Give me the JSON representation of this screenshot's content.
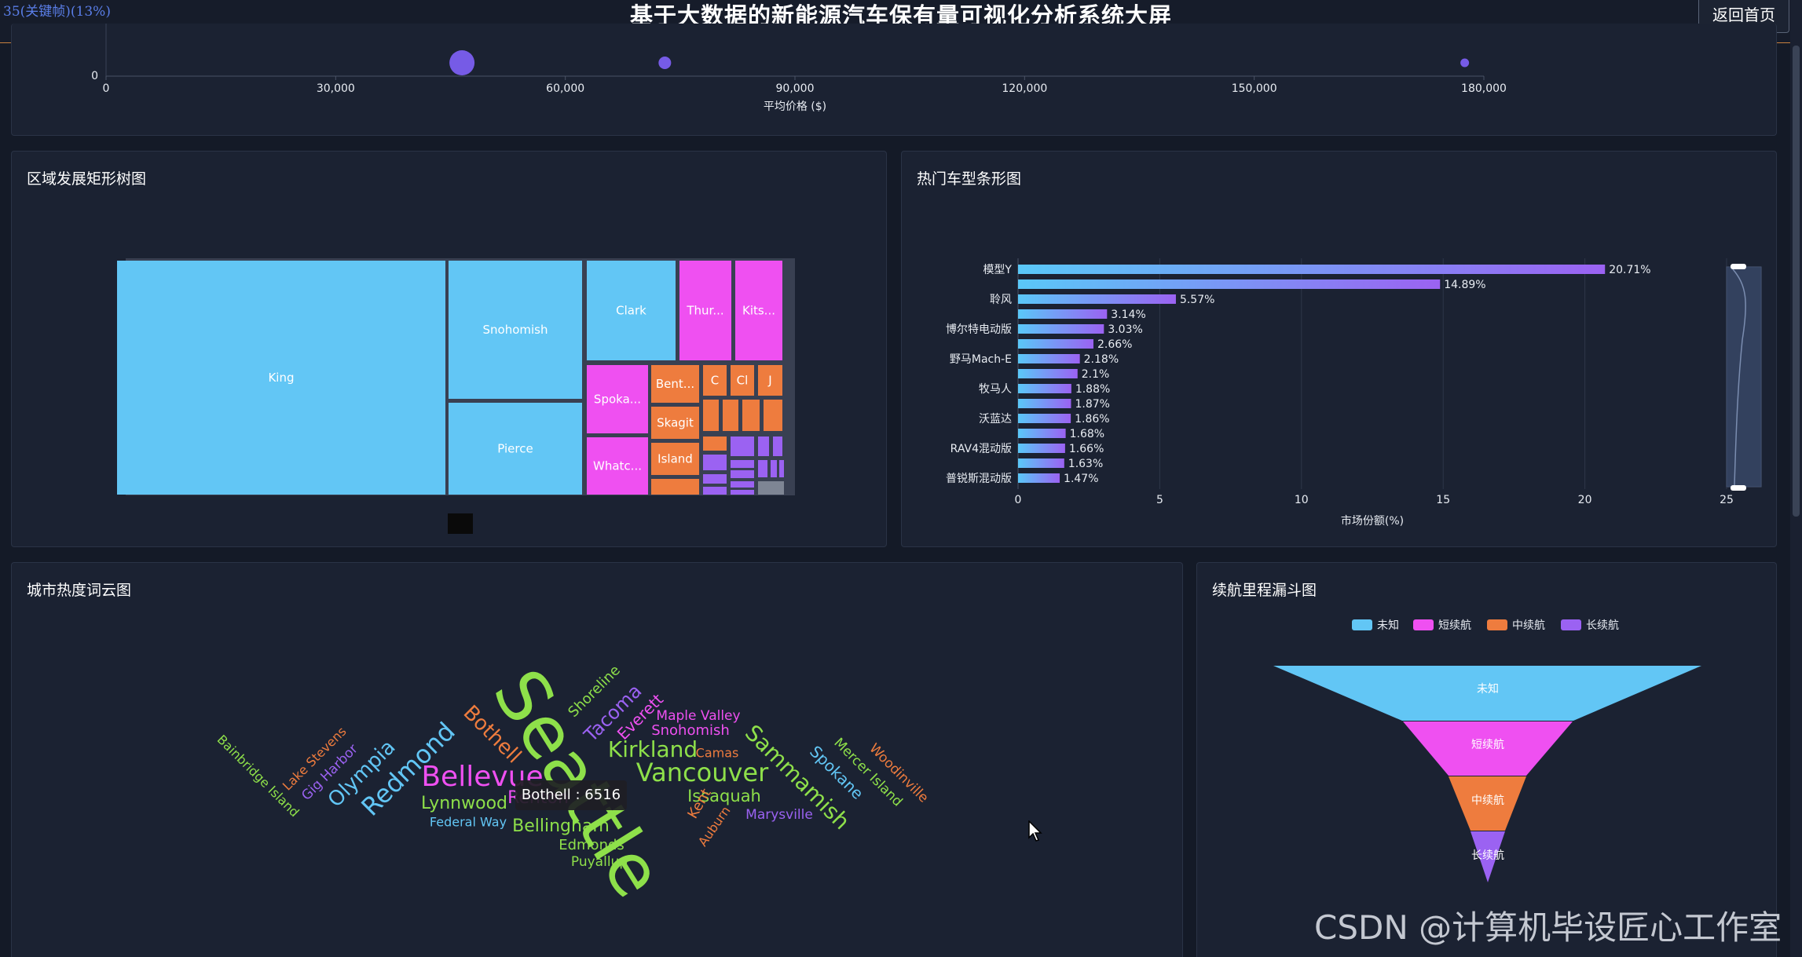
{
  "header": {
    "fps": "35(关键帧)(13%)",
    "title": "基于大数据的新能源汽车保有量可视化分析系统大屏",
    "back_label": "返回首页"
  },
  "scatter": {
    "chart_data": {
      "type": "scatter",
      "xlabel": "平均价格 ($)",
      "xlim": [
        0,
        180000
      ],
      "x_ticks": [
        "0",
        "30,000",
        "60,000",
        "90,000",
        "120,000",
        "150,000",
        "180,000"
      ],
      "y_ticks": [
        "0"
      ],
      "points": [
        {
          "x": 46500,
          "size": 32
        },
        {
          "x": 73000,
          "size": 16
        },
        {
          "x": 177500,
          "size": 11
        }
      ],
      "color": "#7b5ff0"
    }
  },
  "treemap": {
    "title": "区域发展矩形树图",
    "chart_data": {
      "type": "treemap",
      "nodes": [
        {
          "name": "King",
          "color": "#62c6f5"
        },
        {
          "name": "Snohomish",
          "color": "#62c6f5"
        },
        {
          "name": "Pierce",
          "color": "#62c6f5"
        },
        {
          "name": "Clark",
          "color": "#62c6f5"
        },
        {
          "name": "Thur...",
          "color": "#ef50f1"
        },
        {
          "name": "Kits...",
          "color": "#ef50f1"
        },
        {
          "name": "Spoka...",
          "color": "#ef50f1"
        },
        {
          "name": "Whatc...",
          "color": "#ef50f1"
        },
        {
          "name": "Bent...",
          "color": "#ee7c3e"
        },
        {
          "name": "Skagit",
          "color": "#ee7c3e"
        },
        {
          "name": "Island",
          "color": "#ee7c3e"
        },
        {
          "name": "C",
          "color": "#ee7c3e"
        },
        {
          "name": "Cl",
          "color": "#ee7c3e"
        },
        {
          "name": "J",
          "color": "#ee7c3e"
        }
      ]
    }
  },
  "bar": {
    "title": "热门车型条形图",
    "chart_data": {
      "type": "bar",
      "orientation": "horizontal",
      "xlabel": "市场份额(%)",
      "xlim": [
        0,
        25
      ],
      "x_ticks": [
        "0",
        "5",
        "10",
        "15",
        "20",
        "25"
      ],
      "categories": [
        "模型Y",
        "",
        "聆风",
        "",
        "博尔特电动版",
        "",
        "野马Mach-E",
        "",
        "牧马人",
        "",
        "沃蓝达",
        "",
        "RAV4混动版",
        "",
        "普锐斯混动版"
      ],
      "values": [
        20.71,
        14.89,
        5.57,
        3.14,
        3.03,
        2.66,
        2.18,
        2.1,
        1.88,
        1.87,
        1.86,
        1.68,
        1.66,
        1.63,
        1.47
      ],
      "labels": [
        "20.71%",
        "14.89%",
        "5.57%",
        "3.14%",
        "3.03%",
        "2.66%",
        "2.18%",
        "2.1%",
        "1.88%",
        "1.87%",
        "1.86%",
        "1.68%",
        "1.66%",
        "1.63%",
        "1.47%"
      ],
      "gradient": [
        "#5ac8f8",
        "#9b62f2"
      ]
    }
  },
  "wordcloud": {
    "title": "城市热度词云图",
    "tooltip": "Bothell : 6516",
    "words": [
      {
        "text": "Seattle",
        "color": "#8ee04a"
      },
      {
        "text": "Bellevue",
        "color": "#ef50f1"
      },
      {
        "text": "Redmond",
        "color": "#62c6f5"
      },
      {
        "text": "Vancouver",
        "color": "#8ee04a"
      },
      {
        "text": "Kirkland",
        "color": "#8ee04a"
      },
      {
        "text": "Sammamish",
        "color": "#8ee04a"
      },
      {
        "text": "Bothell",
        "color": "#ee7c3e"
      },
      {
        "text": "Tacoma",
        "color": "#9b62f2"
      },
      {
        "text": "Olympia",
        "color": "#62c6f5"
      },
      {
        "text": "Shoreline",
        "color": "#8ee04a"
      },
      {
        "text": "Everett",
        "color": "#ef50f1"
      },
      {
        "text": "Snohomish",
        "color": "#ef50f1"
      },
      {
        "text": "Maple Valley",
        "color": "#ef50f1"
      },
      {
        "text": "Camas",
        "color": "#ee7c3e"
      },
      {
        "text": "Issaquah",
        "color": "#8ee04a"
      },
      {
        "text": "Spokane",
        "color": "#62c6f5"
      },
      {
        "text": "Mercer Island",
        "color": "#8ee04a"
      },
      {
        "text": "Woodinville",
        "color": "#ee7c3e"
      },
      {
        "text": "Lynnwood",
        "color": "#8ee04a"
      },
      {
        "text": "Renton",
        "color": "#ef50f1"
      },
      {
        "text": "Bellingham",
        "color": "#8ee04a"
      },
      {
        "text": "Federal Way",
        "color": "#62c6f5"
      },
      {
        "text": "Edmonds",
        "color": "#8ee04a"
      },
      {
        "text": "Puyallup",
        "color": "#8ee04a"
      },
      {
        "text": "Kent",
        "color": "#ee7c3e"
      },
      {
        "text": "Auburn",
        "color": "#ee7c3e"
      },
      {
        "text": "Marysville",
        "color": "#9b62f2"
      },
      {
        "text": "Gig Harbor",
        "color": "#9b62f2"
      },
      {
        "text": "Lake Stevens",
        "color": "#ee7c3e"
      },
      {
        "text": "Bainbridge Island",
        "color": "#8ee04a"
      }
    ]
  },
  "funnel": {
    "title": "续航里程漏斗图",
    "legend": [
      {
        "name": "未知",
        "color": "#62c6f5"
      },
      {
        "name": "短续航",
        "color": "#ef50f1"
      },
      {
        "name": "中续航",
        "color": "#ee7c3e"
      },
      {
        "name": "长续航",
        "color": "#9b62f2"
      }
    ],
    "chart_data": {
      "type": "funnel",
      "stages": [
        "未知",
        "短续航",
        "中续航",
        "长续航"
      ]
    }
  },
  "watermark": "CSDN @计算机毕设匠心工作室"
}
